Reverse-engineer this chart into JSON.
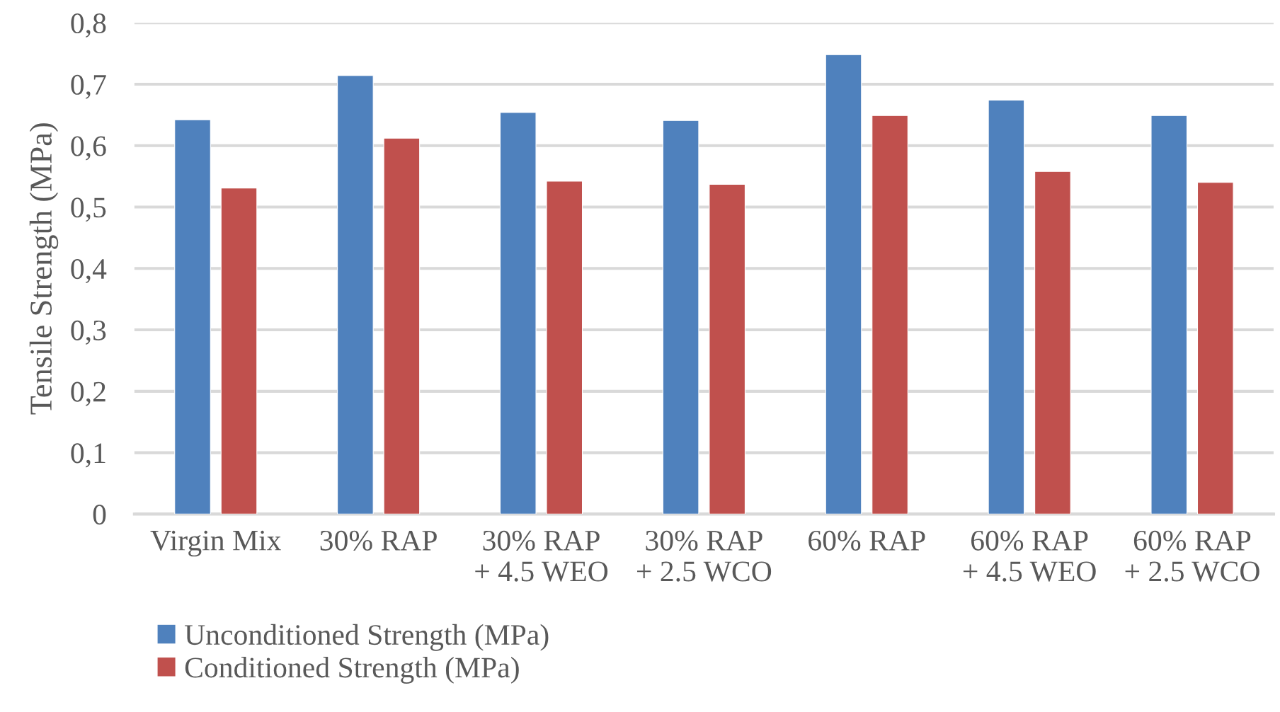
{
  "chart_data": {
    "type": "bar",
    "ylabel": "Tensile Strength (MPa)",
    "categories": [
      "Virgin Mix",
      "30% RAP",
      "30% RAP\n+ 4.5 WEO",
      "30% RAP\n+ 2.5 WCO",
      "60% RAP",
      "60% RAP\n+ 4.5 WEO",
      "60% RAP\n+ 2.5 WCO"
    ],
    "series": [
      {
        "name": "Unconditioned Strength (MPa)",
        "color": "#4f81bd",
        "values": [
          0.642,
          0.714,
          0.654,
          0.641,
          0.748,
          0.674,
          0.649
        ]
      },
      {
        "name": "Conditioned Strength (MPa)",
        "color": "#c0504d",
        "values": [
          0.531,
          0.612,
          0.542,
          0.537,
          0.649,
          0.558,
          0.54
        ]
      }
    ],
    "ylim": [
      0,
      0.8
    ],
    "yticks": [
      0,
      {
        "value": 0.1,
        "label": "0,1"
      },
      {
        "value": 0.2,
        "label": "0,2"
      },
      {
        "value": 0.3,
        "label": "0,3"
      },
      {
        "value": 0.4,
        "label": "0,4"
      },
      {
        "value": 0.5,
        "label": "0,5"
      },
      {
        "value": 0.6,
        "label": "0,6"
      },
      {
        "value": 0.7,
        "label": "0,7"
      },
      {
        "value": 0.8,
        "label": "0,8"
      }
    ],
    "grid": "y",
    "legend": "bottom left"
  }
}
